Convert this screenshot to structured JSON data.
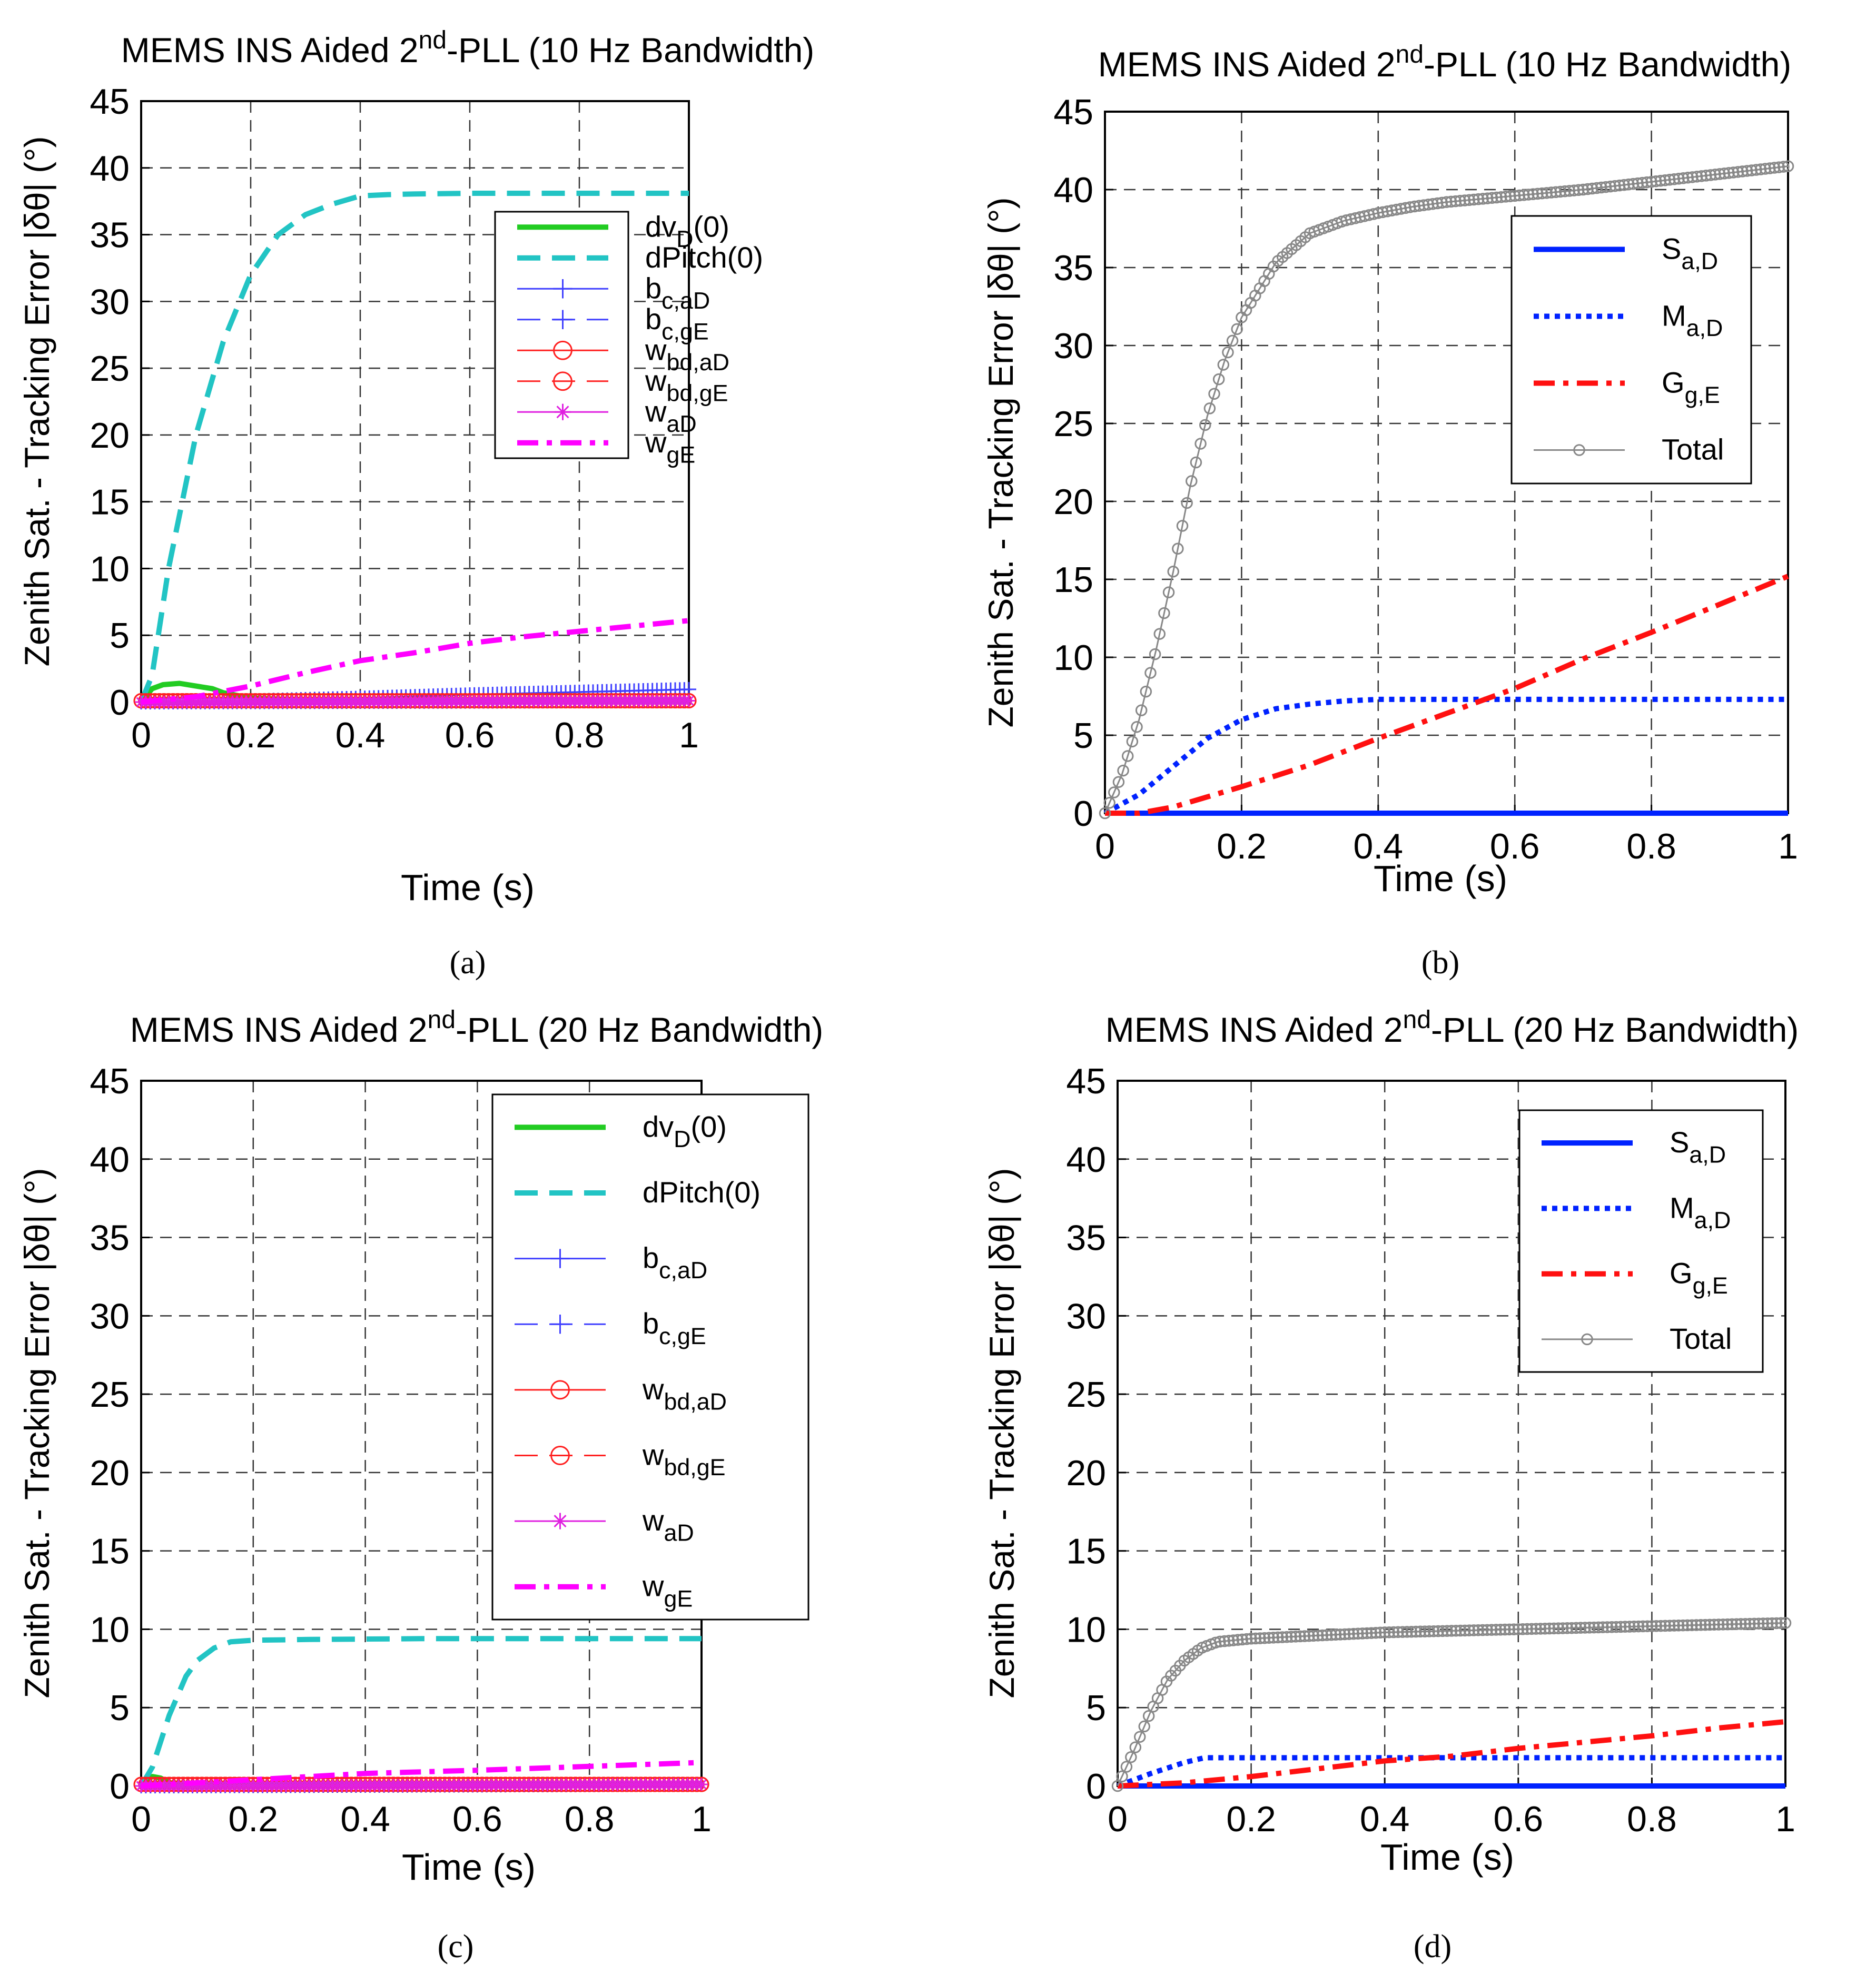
{
  "figure": {
    "panels": [
      {
        "caption": "(a)",
        "title": "MEMS INS Aided 2nd-PLL (10 Hz Bandwidth)",
        "ylabel": "Zenith Sat. - Tracking Error |δθ| (°)",
        "xlabel": "Time (s)"
      },
      {
        "caption": "(b)",
        "title": "MEMS INS Aided 2nd-PLL (10 Hz Bandwidth)",
        "ylabel": "Zenith Sat. - Tracking Error |δθ| (°)",
        "xlabel": "Time (s)"
      },
      {
        "caption": "(c)",
        "title": "MEMS INS Aided 2nd-PLL (20 Hz Bandwidth)",
        "ylabel": "Zenith Sat. - Tracking Error |δθ| (°)",
        "xlabel": "Time (s)"
      },
      {
        "caption": "(d)",
        "title": "MEMS INS Aided 2nd-PLL (20 Hz Bandwidth)",
        "ylabel": "Zenith Sat. - Tracking Error |δθ| (°)",
        "xlabel": "Time (s)"
      }
    ]
  },
  "chart_data": [
    {
      "type": "line",
      "title": "MEMS INS Aided 2nd-PLL (10 Hz Bandwidth)",
      "xlabel": "Time (s)",
      "ylabel": "Zenith Sat. - Tracking Error |δθ| (°)",
      "xlim": [
        0,
        1
      ],
      "ylim": [
        0,
        45
      ],
      "xticks": [
        "0",
        "0.2",
        "0.4",
        "0.6",
        "0.8",
        "1"
      ],
      "yticks": [
        "0",
        "5",
        "10",
        "15",
        "20",
        "25",
        "30",
        "35",
        "40",
        "45"
      ],
      "grid": true,
      "legend_position": "top-right",
      "series": [
        {
          "name": "dvD(0)",
          "color": "#22cc22",
          "style": "solid",
          "marker": "none",
          "x": [
            0,
            0.02,
            0.04,
            0.07,
            0.1,
            0.13,
            0.15,
            0.2,
            0.3,
            0.5,
            1.0
          ],
          "y": [
            0,
            1.0,
            1.3,
            1.4,
            1.2,
            1.0,
            0.7,
            0.3,
            0.15,
            0.1,
            0.1
          ]
        },
        {
          "name": "dPitch(0)",
          "color": "#22c4c4",
          "style": "dashed",
          "marker": "none",
          "x": [
            0,
            0.02,
            0.05,
            0.1,
            0.15,
            0.2,
            0.25,
            0.3,
            0.35,
            0.4,
            0.45,
            0.5,
            0.6,
            0.7,
            0.8,
            0.9,
            1.0
          ],
          "y": [
            0,
            2,
            10,
            20,
            27,
            32,
            35,
            36.5,
            37.3,
            37.9,
            38.0,
            38.05,
            38.1,
            38.1,
            38.1,
            38.1,
            38.1
          ]
        },
        {
          "name": "bc,aD",
          "color": "#4040ff",
          "style": "solid",
          "marker": "plus",
          "x": [
            0,
            0.2,
            0.4,
            0.6,
            0.8,
            1.0
          ],
          "y": [
            0,
            0.1,
            0.3,
            0.55,
            0.75,
            0.95
          ]
        },
        {
          "name": "bc,gE",
          "color": "#4040ff",
          "style": "dashed",
          "marker": "plus",
          "x": [
            0,
            0.5,
            1.0
          ],
          "y": [
            0,
            0.05,
            0.1
          ]
        },
        {
          "name": "wbd,aD",
          "color": "#ff2020",
          "style": "solid",
          "marker": "circle",
          "x": [
            0,
            0.5,
            1.0
          ],
          "y": [
            0.1,
            0.1,
            0.1
          ]
        },
        {
          "name": "wbd,gE",
          "color": "#ff2020",
          "style": "dashed",
          "marker": "circle",
          "x": [
            0,
            0.5,
            1.0
          ],
          "y": [
            0.1,
            0.1,
            0.1
          ]
        },
        {
          "name": "waD",
          "color": "#e020e0",
          "style": "solid",
          "marker": "star",
          "x": [
            0,
            0.5,
            1.0
          ],
          "y": [
            0,
            0.05,
            0.1
          ]
        },
        {
          "name": "wgE",
          "color": "#ff00ff",
          "style": "dashdot",
          "marker": "none",
          "x": [
            0,
            0.1,
            0.2,
            0.3,
            0.4,
            0.5,
            0.6,
            0.7,
            0.8,
            0.9,
            1.0
          ],
          "y": [
            0,
            0.4,
            1.2,
            2.2,
            3.1,
            3.7,
            4.4,
            4.9,
            5.3,
            5.7,
            6.1
          ]
        }
      ]
    },
    {
      "type": "line",
      "title": "MEMS INS Aided 2nd-PLL (10 Hz Bandwidth)",
      "xlabel": "Time (s)",
      "ylabel": "Zenith Sat. - Tracking Error |δθ| (°)",
      "xlim": [
        0,
        1
      ],
      "ylim": [
        0,
        45
      ],
      "xticks": [
        "0",
        "0.2",
        "0.4",
        "0.6",
        "0.8",
        "1"
      ],
      "yticks": [
        "0",
        "5",
        "10",
        "15",
        "20",
        "25",
        "30",
        "35",
        "40",
        "45"
      ],
      "grid": true,
      "legend_position": "top-right",
      "series": [
        {
          "name": "Sa,D",
          "color": "#0022ff",
          "style": "solid",
          "marker": "none",
          "x": [
            0,
            1.0
          ],
          "y": [
            0,
            0
          ]
        },
        {
          "name": "Ma,D",
          "color": "#0022ff",
          "style": "dotted",
          "marker": "none",
          "x": [
            0,
            0.05,
            0.1,
            0.15,
            0.2,
            0.25,
            0.3,
            0.35,
            0.4,
            0.6,
            0.8,
            1.0
          ],
          "y": [
            0,
            1.2,
            3.0,
            4.8,
            6.0,
            6.7,
            7.0,
            7.2,
            7.3,
            7.3,
            7.3,
            7.3
          ]
        },
        {
          "name": "Gg,E",
          "color": "#ff1010",
          "style": "dashdot",
          "marker": "none",
          "x": [
            0,
            0.05,
            0.1,
            0.2,
            0.3,
            0.4,
            0.5,
            0.6,
            0.7,
            0.8,
            0.9,
            1.0
          ],
          "y": [
            0,
            0,
            0.4,
            1.7,
            3.1,
            4.8,
            6.4,
            8.0,
            9.9,
            11.6,
            13.4,
            15.2
          ]
        },
        {
          "name": "Total",
          "color": "#888888",
          "style": "solid",
          "marker": "circle",
          "x": [
            0,
            0.025,
            0.05,
            0.075,
            0.1,
            0.125,
            0.15,
            0.175,
            0.2,
            0.25,
            0.3,
            0.35,
            0.4,
            0.45,
            0.5,
            0.6,
            0.7,
            0.8,
            0.9,
            1.0
          ],
          "y": [
            0,
            2.5,
            6.0,
            10.5,
            15.5,
            21.0,
            25.5,
            29.0,
            31.8,
            35.3,
            37.2,
            38.0,
            38.5,
            38.9,
            39.2,
            39.6,
            40.0,
            40.5,
            41.0,
            41.5
          ]
        }
      ]
    },
    {
      "type": "line",
      "title": "MEMS INS Aided 2nd-PLL (20 Hz Bandwidth)",
      "xlabel": "Time (s)",
      "ylabel": "Zenith Sat. - Tracking Error |δθ| (°)",
      "xlim": [
        0,
        1
      ],
      "ylim": [
        0,
        45
      ],
      "xticks": [
        "0",
        "0.2",
        "0.4",
        "0.6",
        "0.8",
        "1"
      ],
      "yticks": [
        "0",
        "5",
        "10",
        "15",
        "20",
        "25",
        "30",
        "35",
        "40",
        "45"
      ],
      "grid": true,
      "legend_position": "top-right",
      "series": [
        {
          "name": "dvD(0)",
          "color": "#22cc22",
          "style": "solid",
          "marker": "none",
          "x": [
            0,
            0.01,
            0.02,
            0.035,
            0.05,
            0.1,
            1.0
          ],
          "y": [
            0,
            0.4,
            0.6,
            0.5,
            0.2,
            0.1,
            0.1
          ]
        },
        {
          "name": "dPitch(0)",
          "color": "#22c4c4",
          "style": "dashed",
          "marker": "none",
          "x": [
            0,
            0.02,
            0.05,
            0.08,
            0.1,
            0.13,
            0.16,
            0.2,
            0.3,
            0.5,
            0.7,
            1.0
          ],
          "y": [
            0,
            1.2,
            4.5,
            7.0,
            8.0,
            8.8,
            9.2,
            9.3,
            9.35,
            9.4,
            9.4,
            9.4
          ]
        },
        {
          "name": "bc,aD",
          "color": "#4040ff",
          "style": "solid",
          "marker": "plus",
          "x": [
            0,
            0.5,
            1.0
          ],
          "y": [
            0,
            0.05,
            0.1
          ]
        },
        {
          "name": "bc,gE",
          "color": "#4040ff",
          "style": "dashed",
          "marker": "plus",
          "x": [
            0,
            0.5,
            1.0
          ],
          "y": [
            0,
            0.05,
            0.1
          ]
        },
        {
          "name": "wbd,aD",
          "color": "#ff2020",
          "style": "solid",
          "marker": "circle",
          "x": [
            0,
            0.5,
            1.0
          ],
          "y": [
            0.1,
            0.1,
            0.1
          ]
        },
        {
          "name": "wbd,gE",
          "color": "#ff2020",
          "style": "dashed",
          "marker": "circle",
          "x": [
            0,
            0.5,
            1.0
          ],
          "y": [
            0.1,
            0.1,
            0.1
          ]
        },
        {
          "name": "waD",
          "color": "#e020e0",
          "style": "solid",
          "marker": "star",
          "x": [
            0,
            0.5,
            1.0
          ],
          "y": [
            0,
            0.05,
            0.1
          ]
        },
        {
          "name": "wgE",
          "color": "#ff00ff",
          "style": "dashdot",
          "marker": "none",
          "x": [
            0,
            0.2,
            0.4,
            0.6,
            0.8,
            1.0
          ],
          "y": [
            0,
            0.4,
            0.8,
            1.0,
            1.25,
            1.5
          ]
        }
      ]
    },
    {
      "type": "line",
      "title": "MEMS INS Aided 2nd-PLL (20 Hz Bandwidth)",
      "xlabel": "Time (s)",
      "ylabel": "Zenith Sat. - Tracking Error |δθ| (°)",
      "xlim": [
        0,
        1
      ],
      "ylim": [
        0,
        45
      ],
      "xticks": [
        "0",
        "0.2",
        "0.4",
        "0.6",
        "0.8",
        "1"
      ],
      "yticks": [
        "0",
        "5",
        "10",
        "15",
        "20",
        "25",
        "30",
        "35",
        "40",
        "45"
      ],
      "grid": true,
      "legend_position": "top-right",
      "series": [
        {
          "name": "Sa,D",
          "color": "#0022ff",
          "style": "solid",
          "marker": "none",
          "x": [
            0,
            1.0
          ],
          "y": [
            0,
            0
          ]
        },
        {
          "name": "Ma,D",
          "color": "#0022ff",
          "style": "dotted",
          "marker": "none",
          "x": [
            0,
            0.05,
            0.1,
            0.13,
            0.2,
            0.4,
            0.6,
            0.8,
            1.0
          ],
          "y": [
            0,
            0.8,
            1.5,
            1.8,
            1.8,
            1.8,
            1.8,
            1.8,
            1.8
          ]
        },
        {
          "name": "Gg,E",
          "color": "#ff1010",
          "style": "dashdot",
          "marker": "none",
          "x": [
            0,
            0.1,
            0.2,
            0.3,
            0.4,
            0.5,
            0.6,
            0.7,
            0.8,
            0.9,
            1.0
          ],
          "y": [
            0,
            0.2,
            0.6,
            1.1,
            1.6,
            1.9,
            2.4,
            2.8,
            3.2,
            3.7,
            4.1
          ]
        },
        {
          "name": "Total",
          "color": "#888888",
          "style": "solid",
          "marker": "circle",
          "x": [
            0,
            0.025,
            0.05,
            0.075,
            0.1,
            0.125,
            0.15,
            0.2,
            0.3,
            0.4,
            0.5,
            0.6,
            0.7,
            0.8,
            0.9,
            1.0
          ],
          "y": [
            0,
            2.3,
            4.8,
            6.8,
            8.0,
            8.8,
            9.2,
            9.4,
            9.6,
            9.8,
            9.9,
            10.0,
            10.1,
            10.2,
            10.3,
            10.4
          ]
        }
      ]
    }
  ]
}
